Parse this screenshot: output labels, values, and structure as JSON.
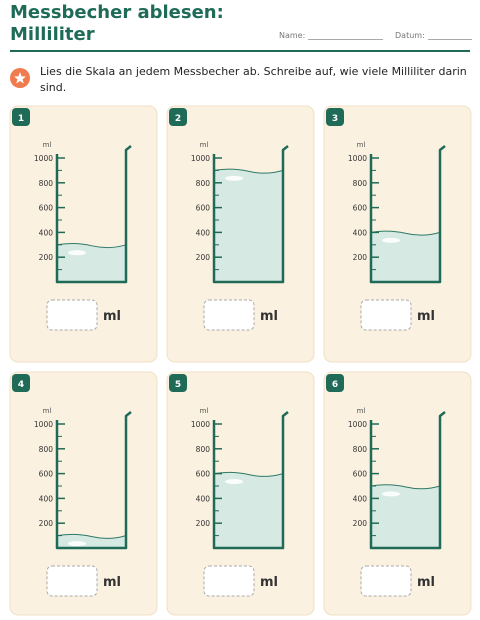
{
  "header": {
    "title": "Messbecher ablesen:",
    "subtitle": "Milliliter",
    "name_label": "Name:",
    "date_label": "Datum:"
  },
  "instruction": "Lies die Skala an jedem Messbecher ab. Schreibe auf, wie viele Milliliter darin sind.",
  "scale": {
    "unit": "ml",
    "ticks": [
      200,
      400,
      600,
      800,
      1000
    ],
    "max": 1000
  },
  "answer_unit": "ml",
  "beakers": [
    {
      "number": "1",
      "level": 300
    },
    {
      "number": "2",
      "level": 900
    },
    {
      "number": "3",
      "level": 400
    },
    {
      "number": "4",
      "level": 100
    },
    {
      "number": "5",
      "level": 600
    },
    {
      "number": "6",
      "level": 500
    }
  ]
}
